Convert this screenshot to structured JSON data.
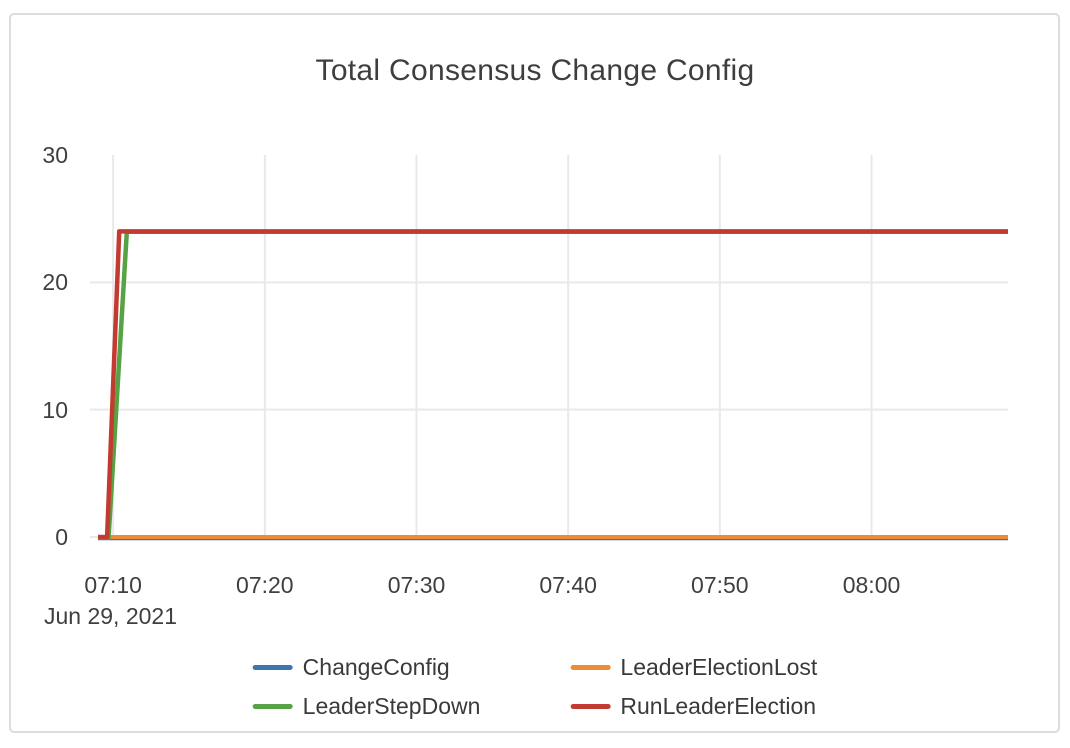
{
  "panel": {
    "background": "#ffffff",
    "border_color": "#dcdcdc"
  },
  "chart_data": {
    "type": "line",
    "title": "Total Consensus Change Config",
    "legend_position": "bottom",
    "grid": true,
    "x_axis": {
      "date_label": "Jun 29, 2021",
      "range_minutes": [
        429,
        489
      ],
      "ticks": [
        {
          "label": "07:10",
          "minutes": 430
        },
        {
          "label": "07:20",
          "minutes": 440
        },
        {
          "label": "07:30",
          "minutes": 450
        },
        {
          "label": "07:40",
          "minutes": 460
        },
        {
          "label": "07:50",
          "minutes": 470
        },
        {
          "label": "08:00",
          "minutes": 480
        }
      ]
    },
    "y_axis": {
      "range": [
        0,
        30
      ],
      "ticks": [
        {
          "label": "30",
          "value": 30,
          "gridline": false
        },
        {
          "label": "20",
          "value": 20,
          "gridline": true
        },
        {
          "label": "10",
          "value": 10,
          "gridline": true
        },
        {
          "label": "0",
          "value": 0,
          "gridline": true
        }
      ]
    },
    "gridline_color": "#e9e9e9",
    "series": [
      {
        "name": "ChangeConfig",
        "color": "#3c76af",
        "points": [
          [
            429,
            0
          ],
          [
            489,
            0
          ]
        ]
      },
      {
        "name": "LeaderElectionLost",
        "color": "#ee8b35",
        "points": [
          [
            429,
            0
          ],
          [
            489,
            0
          ]
        ]
      },
      {
        "name": "LeaderStepDown",
        "color": "#56a244",
        "points": [
          [
            429,
            0
          ],
          [
            429.7,
            0
          ],
          [
            430.9,
            24
          ],
          [
            489,
            24
          ]
        ]
      },
      {
        "name": "RunLeaderElection",
        "color": "#c23b31",
        "points": [
          [
            429,
            0
          ],
          [
            429.6,
            0
          ],
          [
            430.4,
            24
          ],
          [
            489,
            24
          ]
        ]
      }
    ]
  }
}
